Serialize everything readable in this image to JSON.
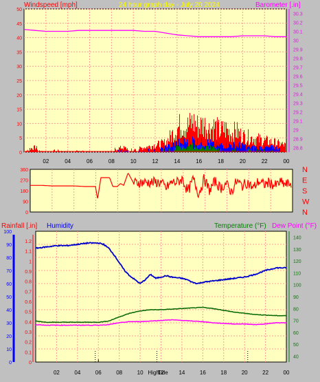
{
  "colors": {
    "background": "#c0c0c0",
    "plot_bg": "#ffffc0",
    "grid": "#ff9999",
    "wind_speed": "#ff0000",
    "wind_gust": "#0000ff",
    "wind_avg": "#008000",
    "barometer": "#ff00ff",
    "wind_dir": "#ff0000",
    "humidity": "#0000cc",
    "temperature": "#006600",
    "dew_point": "#ff00ff",
    "title": "#ffff00",
    "rain_axis": "#ff0000",
    "humidity_axis": "#0000ff",
    "temp_axis": "#008000"
  },
  "chart_data": [
    {
      "type": "line",
      "title": "24 hour graph day - July 20 2024",
      "left_label": "Windspeed [mph]",
      "right_label": "Barometer [.in]",
      "x_ticks": [
        "02",
        "04",
        "06",
        "08",
        "10",
        "12",
        "14",
        "16",
        "18",
        "20",
        "22",
        "00"
      ],
      "y_left_ticks": [
        "0",
        "5",
        "10",
        "15",
        "20",
        "25",
        "30",
        "35",
        "40",
        "45",
        "50"
      ],
      "y_right_ticks": [
        "28.8",
        "28.9",
        "29",
        "29.1",
        "29.2",
        "29.3",
        "29.4",
        "29.5",
        "29.6",
        "29.7",
        "29.8",
        "29.9",
        "30",
        "30.1",
        "30.2",
        "30.3"
      ],
      "ylim_left": [
        0,
        50
      ],
      "ylim_right": [
        28.75,
        30.35
      ],
      "grid": true,
      "series": [
        {
          "axis": "right",
          "x": [
            0,
            1,
            2,
            3,
            4,
            5,
            6,
            7,
            8,
            9,
            10,
            11,
            12,
            13,
            14,
            15,
            16,
            17,
            18,
            19,
            20,
            21,
            22,
            23,
            24
          ],
          "values": [
            30.12,
            30.11,
            30.1,
            30.1,
            30.1,
            30.11,
            30.11,
            30.11,
            30.11,
            30.11,
            30.11,
            30.1,
            30.1,
            30.08,
            30.06,
            30.05,
            30.04,
            30.04,
            30.04,
            30.04,
            30.05,
            30.05,
            30.05,
            30.04,
            30.04
          ]
        }
      ],
      "wind_envelope": {
        "x": [
          0,
          1,
          2,
          3,
          4,
          5,
          6,
          7,
          8,
          9,
          10,
          11,
          12,
          13,
          13.5,
          14,
          14.5,
          15,
          15.5,
          16,
          16.5,
          17,
          17.5,
          18,
          18.5,
          19,
          19.5,
          20,
          21,
          22,
          23,
          24
        ],
        "speed": [
          1,
          2,
          0,
          1,
          0,
          1,
          0,
          0,
          1,
          2,
          1,
          2,
          3,
          4,
          7,
          10,
          12,
          11,
          13,
          11,
          12,
          10,
          11,
          9,
          10,
          8,
          9,
          7,
          6,
          5,
          4,
          3
        ],
        "gust": [
          0,
          0,
          0,
          0,
          0,
          0,
          0,
          0,
          0,
          1,
          0,
          1,
          1,
          2,
          3,
          4,
          5,
          4,
          5,
          4,
          4,
          4,
          3,
          3,
          3,
          3,
          3,
          3,
          2,
          2,
          2,
          1
        ],
        "avg": [
          0,
          0,
          0,
          0,
          0,
          0,
          0,
          0,
          0,
          0,
          0,
          0,
          0,
          1,
          1,
          2,
          2,
          2,
          3,
          2,
          2,
          2,
          2,
          1,
          1,
          1,
          1,
          1,
          1,
          1,
          1,
          0
        ]
      }
    },
    {
      "type": "line",
      "y_left_ticks": [
        "0",
        "90",
        "180",
        "270",
        "360"
      ],
      "y_right_ticks": [
        "N",
        "W",
        "S",
        "E",
        "N"
      ],
      "ylim": [
        0,
        360
      ],
      "x": [
        0,
        1,
        2,
        3,
        4,
        5,
        6,
        6.2,
        6.5,
        6.8,
        7,
        7.3,
        7.6,
        8,
        8.3,
        8.6,
        9,
        9.5,
        10,
        10.5,
        11,
        11.5,
        12,
        12.5,
        13,
        13.5,
        14,
        14.5,
        15,
        15.5,
        16,
        16.5,
        17,
        17.5,
        18,
        18.5,
        19,
        19.5,
        20,
        20.5,
        21,
        21.5,
        22,
        22.5,
        23,
        23.5,
        24
      ],
      "values": [
        225,
        225,
        220,
        220,
        220,
        215,
        215,
        110,
        290,
        290,
        290,
        290,
        215,
        215,
        240,
        225,
        330,
        245,
        250,
        250,
        250,
        250,
        250,
        200,
        250,
        250,
        280,
        170,
        280,
        150,
        280,
        180,
        260,
        200,
        240,
        170,
        260,
        220,
        250,
        200,
        260,
        230,
        250,
        220,
        250,
        230,
        245
      ]
    },
    {
      "type": "line",
      "left_label": "Rainfall [.in]",
      "left_label2": "Humidity",
      "right_label": "Temperature (°F)",
      "right_label2": "Dew Point (°F)",
      "x_ticks": [
        "02",
        "04",
        "06",
        "08",
        "10",
        "12",
        "14",
        "16",
        "18",
        "20",
        "22",
        "00"
      ],
      "y_rain_ticks": [
        "0",
        "0.1",
        "0.2",
        "0.3",
        "0.4",
        "0.5",
        "0.6",
        "0.7",
        "0.8",
        "0.9",
        "1",
        "1.1",
        "1.2"
      ],
      "y_hum_ticks": [
        "0",
        "10",
        "20",
        "30",
        "40",
        "50",
        "60",
        "70",
        "80",
        "90",
        "100"
      ],
      "y_temp_ticks": [
        "40",
        "50",
        "60",
        "70",
        "80",
        "90",
        "100",
        "110",
        "120",
        "130",
        "140"
      ],
      "ylim_hum": [
        0,
        100
      ],
      "ylim_temp": [
        35,
        145
      ],
      "annotations": [
        "High",
        "Tide"
      ],
      "series": [
        {
          "key": "humidity",
          "axis": "hum",
          "x": [
            0,
            1,
            2,
            3,
            4,
            5,
            6,
            6.5,
            7,
            7.5,
            8,
            8.5,
            9,
            9.5,
            10,
            10.5,
            11,
            11.5,
            12,
            12.5,
            13,
            14,
            14.5,
            15,
            15.5,
            16,
            17,
            18,
            19,
            20,
            21,
            22,
            23,
            24
          ],
          "values": [
            87,
            88,
            89,
            89,
            90,
            91,
            91,
            90,
            87,
            82,
            76,
            70,
            66,
            63,
            60,
            63,
            67,
            64,
            65,
            66,
            65,
            64,
            63,
            61,
            60,
            61,
            62,
            63,
            64,
            65,
            67,
            70,
            72,
            72
          ]
        },
        {
          "key": "temperature",
          "axis": "temp",
          "x": [
            0,
            1,
            2,
            3,
            4,
            5,
            6,
            7,
            8,
            9,
            10,
            11,
            12,
            13,
            14,
            15,
            16,
            17,
            18,
            19,
            20,
            21,
            22,
            23,
            24
          ],
          "values": [
            69.5,
            68.5,
            68.5,
            68.5,
            68.5,
            68.5,
            68.5,
            69.5,
            73,
            76,
            78,
            79,
            79,
            79.5,
            80,
            80.5,
            81,
            80,
            78.5,
            77,
            76,
            75,
            74.5,
            74,
            74
          ]
        },
        {
          "key": "dew_point",
          "axis": "temp",
          "x": [
            0,
            1,
            2,
            3,
            4,
            5,
            6,
            7,
            8,
            9,
            10,
            11,
            12,
            13,
            14,
            15,
            16,
            17,
            18,
            19,
            20,
            21,
            22,
            23,
            24
          ],
          "values": [
            66.5,
            66,
            66,
            66,
            66,
            66,
            66,
            66.5,
            68,
            69,
            69,
            69.5,
            70,
            70.5,
            70,
            69.5,
            69,
            68,
            67.5,
            67,
            67,
            66.5,
            67,
            68,
            68
          ]
        }
      ]
    }
  ]
}
